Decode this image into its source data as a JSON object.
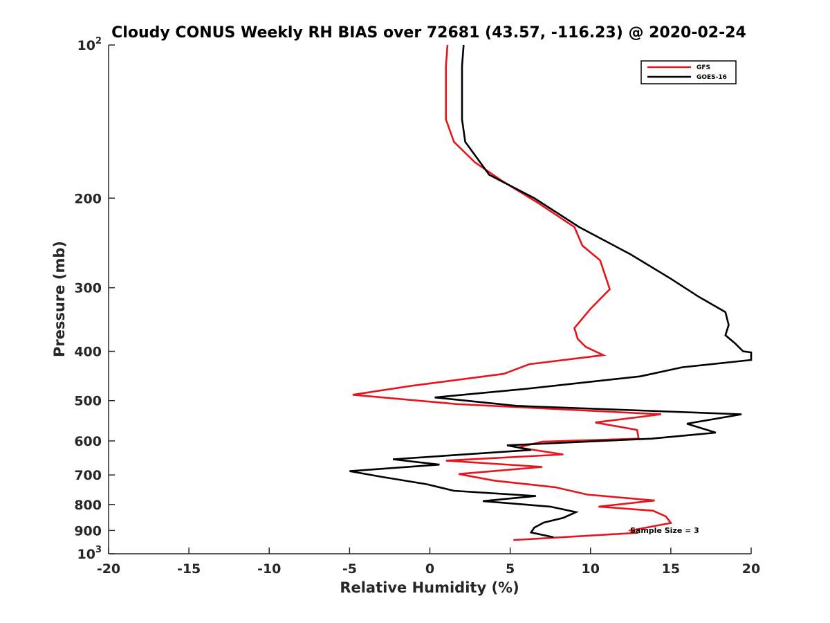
{
  "chart_data": {
    "type": "line",
    "title": "Cloudy CONUS Weekly RH BIAS over 72681 (43.57, -116.23) @ 2020-02-24",
    "xlabel": "Relative Humidity (%)",
    "ylabel": "Pressure (mb)",
    "xlim": [
      -20,
      20
    ],
    "ylim": [
      100,
      1000
    ],
    "yscale": "log",
    "y_reversed": true,
    "x_ticks": [
      "-20",
      "-15",
      "-10",
      "-5",
      "0",
      "5",
      "10",
      "15",
      "20"
    ],
    "y_ticks": [
      {
        "value": 100,
        "base": "10",
        "exp": "2"
      },
      {
        "value": 200,
        "label": "200"
      },
      {
        "value": 300,
        "label": "300"
      },
      {
        "value": 400,
        "label": "400"
      },
      {
        "value": 500,
        "label": "500"
      },
      {
        "value": 600,
        "label": "600"
      },
      {
        "value": 700,
        "label": "700"
      },
      {
        "value": 800,
        "label": "800"
      },
      {
        "value": 900,
        "label": "900"
      },
      {
        "value": 1000,
        "base": "10",
        "exp": "3"
      }
    ],
    "legend": "top-right",
    "grid": false,
    "series": [
      {
        "name": "GFS",
        "color": "#e8141c",
        "points": [
          [
            1.1,
            100
          ],
          [
            1.0,
            110
          ],
          [
            1.0,
            125
          ],
          [
            1.0,
            140
          ],
          [
            1.5,
            155
          ],
          [
            2.8,
            170
          ],
          [
            4.5,
            185
          ],
          [
            6.7,
            204
          ],
          [
            9.0,
            228
          ],
          [
            9.5,
            248
          ],
          [
            10.6,
            265
          ],
          [
            11.2,
            302
          ],
          [
            10.0,
            330
          ],
          [
            9.0,
            360
          ],
          [
            9.2,
            378
          ],
          [
            9.7,
            392
          ],
          [
            10.8,
            407
          ],
          [
            6.2,
            424
          ],
          [
            4.6,
            443
          ],
          [
            -1.2,
            468
          ],
          [
            -4.8,
            487
          ],
          [
            1.7,
            508
          ],
          [
            14.4,
            532
          ],
          [
            10.3,
            552
          ],
          [
            12.9,
            571
          ],
          [
            13.0,
            594
          ],
          [
            7.0,
            602
          ],
          [
            5.5,
            618
          ],
          [
            8.3,
            638
          ],
          [
            1.0,
            656
          ],
          [
            7.0,
            675
          ],
          [
            1.8,
            697
          ],
          [
            4.0,
            718
          ],
          [
            7.8,
            740
          ],
          [
            9.8,
            765
          ],
          [
            14.0,
            786
          ],
          [
            10.5,
            808
          ],
          [
            13.9,
            823
          ],
          [
            14.7,
            845
          ],
          [
            15.0,
            870
          ],
          [
            14.0,
            882
          ],
          [
            12.5,
            900
          ],
          [
            12.8,
            910
          ],
          [
            5.2,
            940
          ]
        ]
      },
      {
        "name": "GOES-16",
        "color": "#000000",
        "points": [
          [
            2.1,
            100
          ],
          [
            2.0,
            110
          ],
          [
            2.0,
            125
          ],
          [
            2.0,
            140
          ],
          [
            2.2,
            155
          ],
          [
            3.7,
            180
          ],
          [
            6.5,
            200
          ],
          [
            9.3,
            228
          ],
          [
            12.5,
            258
          ],
          [
            15.0,
            288
          ],
          [
            16.7,
            312
          ],
          [
            18.4,
            335
          ],
          [
            18.6,
            355
          ],
          [
            18.4,
            372
          ],
          [
            19.0,
            386
          ],
          [
            19.5,
            400
          ],
          [
            20.0,
            402
          ],
          [
            20.0,
            416
          ],
          [
            15.7,
            430
          ],
          [
            13.1,
            448
          ],
          [
            6.0,
            474
          ],
          [
            0.3,
            493
          ],
          [
            5.4,
            512
          ],
          [
            19.4,
            532
          ],
          [
            16.0,
            555
          ],
          [
            17.8,
            578
          ],
          [
            13.8,
            594
          ],
          [
            4.8,
            612
          ],
          [
            6.3,
            625
          ],
          [
            -2.3,
            652
          ],
          [
            0.6,
            668
          ],
          [
            -5.0,
            688
          ],
          [
            -3.0,
            706
          ],
          [
            -0.2,
            730
          ],
          [
            1.5,
            752
          ],
          [
            6.6,
            770
          ],
          [
            3.3,
            788
          ],
          [
            7.5,
            808
          ],
          [
            9.1,
            828
          ],
          [
            8.3,
            850
          ],
          [
            7.1,
            868
          ],
          [
            6.5,
            888
          ],
          [
            6.3,
            908
          ],
          [
            7.7,
            928
          ]
        ]
      }
    ],
    "annotation": "Sample Size = 3"
  }
}
